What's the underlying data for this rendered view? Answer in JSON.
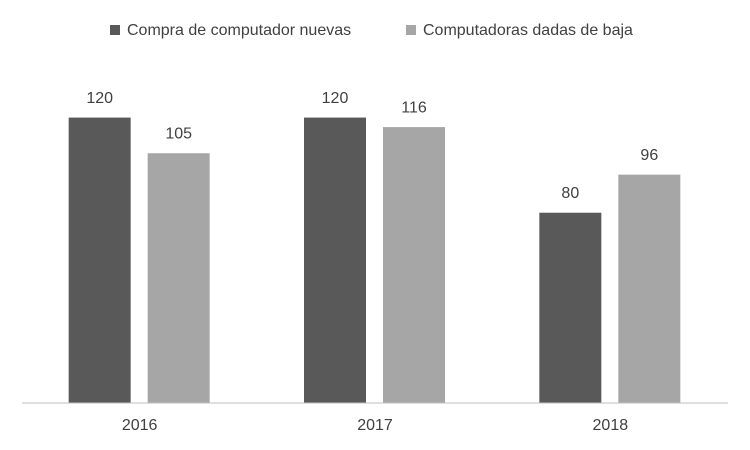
{
  "chart_data": {
    "type": "bar",
    "categories": [
      "2016",
      "2017",
      "2018"
    ],
    "series": [
      {
        "name": "Compra de computador nuevas",
        "color": "#595959",
        "values": [
          120,
          120,
          80
        ]
      },
      {
        "name": "Computadoras dadas de baja",
        "color": "#a6a6a6",
        "values": [
          105,
          116,
          96
        ]
      }
    ],
    "ylim": [
      0,
      140
    ],
    "legend": "top"
  }
}
